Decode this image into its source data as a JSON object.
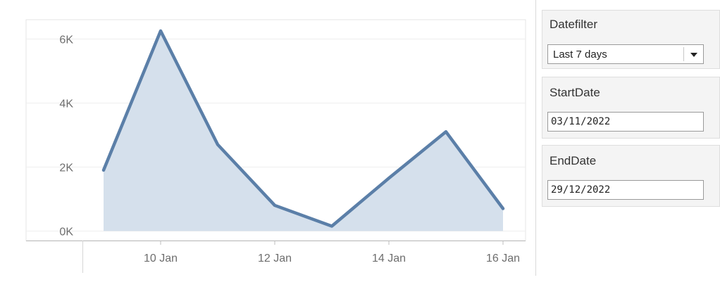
{
  "chart_data": {
    "type": "area",
    "x": [
      "09 Jan",
      "10 Jan",
      "11 Jan",
      "12 Jan",
      "13 Jan",
      "14 Jan",
      "15 Jan",
      "16 Jan"
    ],
    "values": [
      1900,
      6250,
      2700,
      800,
      150,
      1650,
      3100,
      700
    ],
    "x_tick_labels": [
      "10 Jan",
      "12 Jan",
      "14 Jan",
      "16 Jan"
    ],
    "y_tick_labels": [
      "0K",
      "2K",
      "4K",
      "6K"
    ],
    "y_ticks": [
      0,
      2000,
      4000,
      6000
    ],
    "ylim": [
      -300,
      6600
    ],
    "grid": true,
    "line_color": "#5b7fa8",
    "fill_color": "#d5e0ec"
  },
  "filters": {
    "datefilter": {
      "title": "Datefilter",
      "selected": "Last 7 days"
    },
    "startdate": {
      "title": "StartDate",
      "value": "03/11/2022"
    },
    "enddate": {
      "title": "EndDate",
      "value": "29/12/2022"
    }
  }
}
